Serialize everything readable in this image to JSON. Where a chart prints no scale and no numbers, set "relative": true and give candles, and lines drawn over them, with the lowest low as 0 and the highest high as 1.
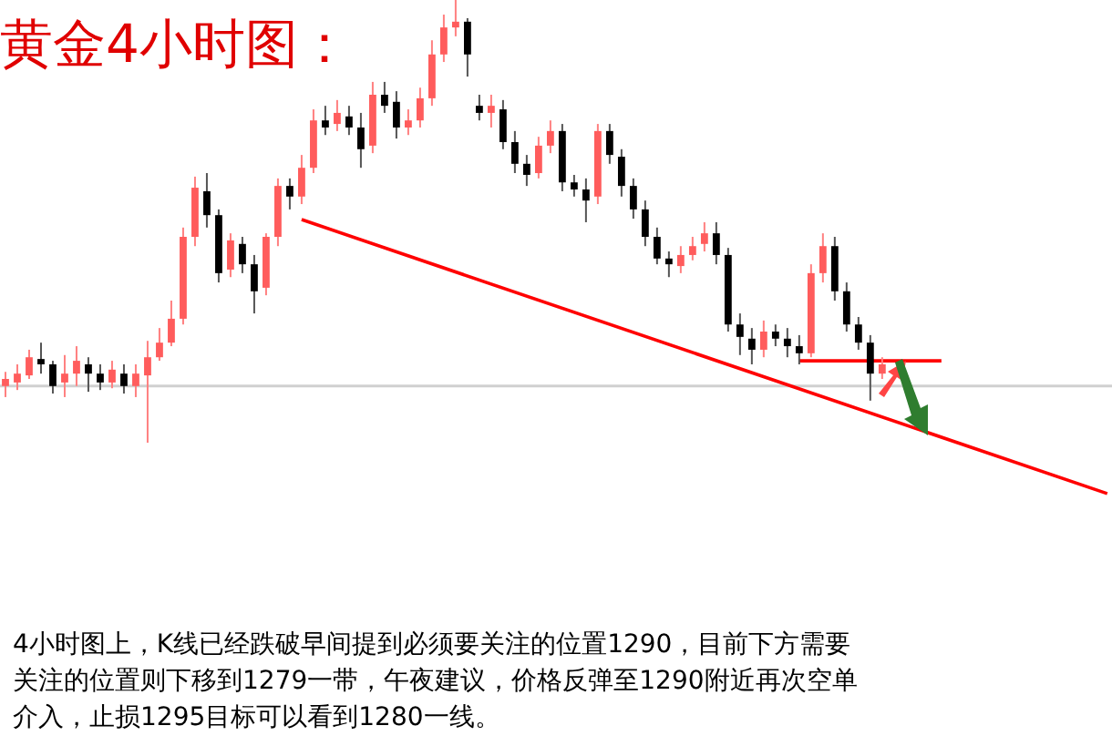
{
  "chart_data": {
    "type": "candlestick",
    "title": "黄金4小时图：",
    "relative": true,
    "categories": [
      null,
      null,
      null,
      null,
      null,
      null,
      null,
      null,
      null,
      null,
      null,
      null,
      null,
      null,
      null,
      null,
      null,
      null,
      null,
      null,
      null,
      null,
      null,
      null,
      null,
      null,
      null,
      null,
      null,
      null,
      null,
      null,
      null,
      null,
      null,
      null,
      null,
      null,
      null,
      null,
      null,
      null,
      null,
      null,
      null,
      null,
      null,
      null,
      null,
      null,
      null,
      null,
      null,
      null,
      null,
      null,
      null,
      null,
      null,
      null,
      null,
      null,
      null,
      null,
      null,
      null,
      null,
      null,
      null,
      null,
      null,
      null,
      null,
      null,
      null,
      null,
      null,
      null,
      null,
      null,
      null,
      null,
      null,
      null,
      null,
      null,
      null,
      null,
      null,
      null,
      null,
      null,
      null,
      null
    ],
    "ohlc": [
      [
        0.128,
        0.16,
        0.103,
        0.144
      ],
      [
        0.136,
        0.177,
        0.119,
        0.156
      ],
      [
        0.152,
        0.21,
        0.144,
        0.193
      ],
      [
        0.189,
        0.226,
        0.156,
        0.177
      ],
      [
        0.177,
        0.185,
        0.111,
        0.128
      ],
      [
        0.136,
        0.198,
        0.103,
        0.156
      ],
      [
        0.156,
        0.218,
        0.128,
        0.185
      ],
      [
        0.177,
        0.193,
        0.115,
        0.156
      ],
      [
        0.156,
        0.177,
        0.119,
        0.136
      ],
      [
        0.136,
        0.185,
        0.123,
        0.165
      ],
      [
        0.156,
        0.177,
        0.111,
        0.128
      ],
      [
        0.128,
        0.177,
        0.103,
        0.156
      ],
      [
        0.152,
        0.23,
        0,
        0.193
      ],
      [
        0.193,
        0.259,
        0.185,
        0.226
      ],
      [
        0.226,
        0.321,
        0.218,
        0.28
      ],
      [
        0.28,
        0.486,
        0.267,
        0.465
      ],
      [
        0.465,
        0.601,
        0.444,
        0.576
      ],
      [
        0.568,
        0.609,
        0.486,
        0.514
      ],
      [
        0.514,
        0.527,
        0.362,
        0.383
      ],
      [
        0.391,
        0.473,
        0.374,
        0.457
      ],
      [
        0.449,
        0.465,
        0.383,
        0.403
      ],
      [
        0.403,
        0.424,
        0.292,
        0.342
      ],
      [
        0.35,
        0.473,
        0.333,
        0.465
      ],
      [
        0.465,
        0.597,
        0.444,
        0.58
      ],
      [
        0.58,
        0.597,
        0.527,
        0.556
      ],
      [
        0.556,
        0.65,
        0.539,
        0.621
      ],
      [
        0.621,
        0.753,
        0.609,
        0.728
      ],
      [
        0.728,
        0.761,
        0.695,
        0.712
      ],
      [
        0.72,
        0.774,
        0.704,
        0.745
      ],
      [
        0.737,
        0.761,
        0.695,
        0.712
      ],
      [
        0.712,
        0.745,
        0.621,
        0.663
      ],
      [
        0.671,
        0.815,
        0.654,
        0.786
      ],
      [
        0.786,
        0.815,
        0.745,
        0.761
      ],
      [
        0.77,
        0.794,
        0.687,
        0.712
      ],
      [
        0.712,
        0.753,
        0.695,
        0.728
      ],
      [
        0.728,
        0.802,
        0.712,
        0.778
      ],
      [
        0.778,
        0.909,
        0.761,
        0.877
      ],
      [
        0.877,
        0.967,
        0.86,
        0.938
      ],
      [
        0.938,
        1,
        0.918,
        0.951
      ],
      [
        0.951,
        0.959,
        0.827,
        0.877
      ],
      [
        0.761,
        0.786,
        0.728,
        0.745
      ],
      [
        0.745,
        0.786,
        0.712,
        0.761
      ],
      [
        0.753,
        0.774,
        0.663,
        0.679
      ],
      [
        0.679,
        0.704,
        0.609,
        0.63
      ],
      [
        0.63,
        0.65,
        0.58,
        0.605
      ],
      [
        0.609,
        0.691,
        0.597,
        0.671
      ],
      [
        0.671,
        0.728,
        0.654,
        0.704
      ],
      [
        0.704,
        0.72,
        0.568,
        0.588
      ],
      [
        0.588,
        0.605,
        0.556,
        0.572
      ],
      [
        0.572,
        0.597,
        0.498,
        0.547
      ],
      [
        0.556,
        0.72,
        0.539,
        0.704
      ],
      [
        0.704,
        0.72,
        0.63,
        0.65
      ],
      [
        0.646,
        0.663,
        0.556,
        0.58
      ],
      [
        0.58,
        0.597,
        0.506,
        0.527
      ],
      [
        0.527,
        0.547,
        0.444,
        0.465
      ],
      [
        0.465,
        0.486,
        0.403,
        0.416
      ],
      [
        0.416,
        0.432,
        0.374,
        0.403
      ],
      [
        0.399,
        0.444,
        0.383,
        0.424
      ],
      [
        0.424,
        0.465,
        0.412,
        0.444
      ],
      [
        0.449,
        0.498,
        0.432,
        0.473
      ],
      [
        0.473,
        0.498,
        0.403,
        0.424
      ],
      [
        0.424,
        0.44,
        0.251,
        0.267
      ],
      [
        0.267,
        0.292,
        0.198,
        0.239
      ],
      [
        0.235,
        0.259,
        0.177,
        0.21
      ],
      [
        0.21,
        0.276,
        0.193,
        0.251
      ],
      [
        0.251,
        0.267,
        0.218,
        0.235
      ],
      [
        0.235,
        0.259,
        0.193,
        0.218
      ],
      [
        0.218,
        0.243,
        0.177,
        0.202
      ],
      [
        0.202,
        0.403,
        0.193,
        0.383
      ],
      [
        0.383,
        0.473,
        0.362,
        0.444
      ],
      [
        0.444,
        0.465,
        0.321,
        0.342
      ],
      [
        0.342,
        0.362,
        0.251,
        0.267
      ],
      [
        0.267,
        0.284,
        0.21,
        0.226
      ],
      [
        0.226,
        0.243,
        0.095,
        0.156
      ],
      [
        0.156,
        0.193,
        0.144,
        0.177
      ],
      null,
      null,
      null,
      null,
      null,
      null,
      null,
      null,
      null,
      null,
      null,
      null,
      null,
      null,
      null,
      null,
      null,
      null,
      null
    ],
    "series": [
      {
        "type": "line",
        "color": "#ff0000",
        "values": [
          null,
          null,
          null,
          null,
          null,
          null,
          null,
          null,
          null,
          null,
          null,
          null,
          null,
          null,
          null,
          null,
          null,
          null,
          null,
          null,
          null,
          null,
          null,
          null,
          null,
          0.504,
          null,
          null,
          null,
          null,
          null,
          null,
          null,
          null,
          null,
          null,
          null,
          null,
          null,
          null,
          null,
          null,
          null,
          null,
          null,
          null,
          null,
          null,
          null,
          null,
          null,
          null,
          null,
          null,
          null,
          null,
          null,
          null,
          null,
          null,
          null,
          null,
          null,
          null,
          null,
          null,
          null,
          null,
          null,
          null,
          null,
          null,
          null,
          null,
          null,
          null,
          null,
          null,
          null,
          null,
          null,
          null,
          null,
          null,
          null,
          null,
          null,
          null,
          null,
          null,
          null,
          null,
          null,
          -0.115
        ]
      },
      {
        "type": "line",
        "color": "#ff0000",
        "values": [
          null,
          null,
          null,
          null,
          null,
          null,
          null,
          null,
          null,
          null,
          null,
          null,
          null,
          null,
          null,
          null,
          null,
          null,
          null,
          null,
          null,
          null,
          null,
          null,
          null,
          null,
          null,
          null,
          null,
          null,
          null,
          null,
          null,
          null,
          null,
          null,
          null,
          null,
          null,
          null,
          null,
          null,
          null,
          null,
          null,
          null,
          null,
          null,
          null,
          null,
          null,
          null,
          null,
          null,
          null,
          null,
          null,
          null,
          null,
          null,
          null,
          null,
          null,
          null,
          null,
          null,
          null,
          0.185,
          null,
          null,
          null,
          null,
          null,
          null,
          null,
          null,
          null,
          null,
          null,
          0.185,
          null,
          null,
          null,
          null,
          null,
          null,
          null,
          null,
          null,
          null,
          null,
          null,
          null,
          null
        ]
      }
    ],
    "ref_lines": [
      {
        "axis": "y",
        "value": 0.128,
        "color": "#d0d0d0"
      }
    ],
    "annotations": [
      "4小时图上，K线已经跌破早间提到必须要关注的位置1290，目前下方需要",
      "关注的位置则下移到1279一带，午夜建议，价格反弹至1290附近再次空单",
      "介入，止损1295目标可以看到1280一线。"
    ]
  }
}
